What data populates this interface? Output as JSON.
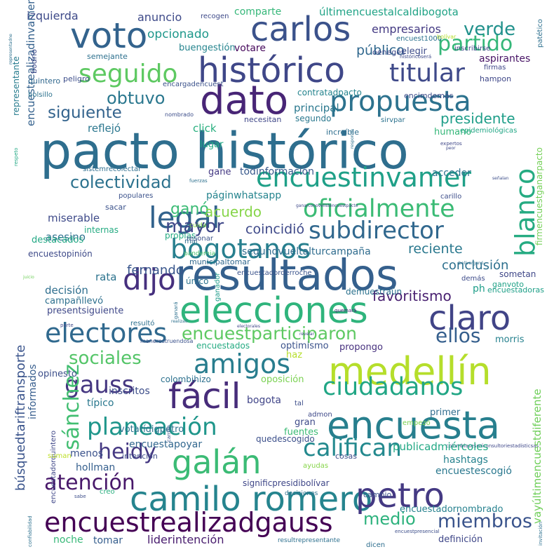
{
  "words": [
    {
      "text": "pacto histórico",
      "color": "#2e6e8e"
    },
    {
      "text": "resultados",
      "color": "#35608d"
    },
    {
      "text": "encuesta",
      "color": "#277f8e"
    },
    {
      "text": "medellín",
      "color": "#b5de2b"
    },
    {
      "text": "elecciones",
      "color": "#2fb47c"
    },
    {
      "text": "voto",
      "color": "#33638d"
    },
    {
      "text": "carlos",
      "color": "#3b528b"
    },
    {
      "text": "dato",
      "color": "#482576"
    },
    {
      "text": "histórico",
      "color": "#3f4788"
    },
    {
      "text": "propuesta",
      "color": "#2c728e"
    },
    {
      "text": "seguido",
      "color": "#5ec962"
    },
    {
      "text": "titular",
      "color": "#3e4989"
    },
    {
      "text": "camilo romero",
      "color": "#25848e"
    },
    {
      "text": "petro",
      "color": "#443983"
    },
    {
      "text": "claro",
      "color": "#414487"
    },
    {
      "text": "fácil",
      "color": "#472c7a"
    },
    {
      "text": "galán",
      "color": "#3bbb75"
    },
    {
      "text": "encuestrealizadgauss",
      "color": "#440154"
    },
    {
      "text": "amigos",
      "color": "#287d8e"
    },
    {
      "text": "electores",
      "color": "#30698e"
    },
    {
      "text": "ciudadanos",
      "color": "#21a685"
    },
    {
      "text": "califican",
      "color": "#23898e"
    },
    {
      "text": "planeación",
      "color": "#1f968b"
    },
    {
      "text": "encuestinvamer",
      "color": "#1fa088"
    },
    {
      "text": "oficialmente",
      "color": "#3bbb75"
    },
    {
      "text": "legal",
      "color": "#33638d"
    },
    {
      "text": "subdirector",
      "color": "#31688e"
    },
    {
      "text": "blanco",
      "color": "#25ab82"
    },
    {
      "text": "bogotanos",
      "color": "#277f8e"
    },
    {
      "text": "dijo",
      "color": "#46307e"
    },
    {
      "text": "gauss",
      "color": "#453781"
    },
    {
      "text": "heidy",
      "color": "#453882"
    },
    {
      "text": "sánchez",
      "color": "#42be71"
    },
    {
      "text": "atención",
      "color": "#48186a"
    },
    {
      "text": "medio",
      "color": "#2db27d"
    },
    {
      "text": "miembros",
      "color": "#3a548c"
    },
    {
      "text": "colectividad",
      "color": "#2c728e"
    },
    {
      "text": "mayor",
      "color": "#3f4788"
    },
    {
      "text": "partido",
      "color": "#35b779"
    },
    {
      "text": "verde",
      "color": "#21918c"
    },
    {
      "text": "obtuvo",
      "color": "#2a778e"
    },
    {
      "text": "siguiente",
      "color": "#33638d"
    },
    {
      "text": "presidente",
      "color": "#1f9e89"
    },
    {
      "text": "sociales",
      "color": "#54c568"
    },
    {
      "text": "ellos",
      "color": "#355f8d"
    },
    {
      "text": "encuestparticiparon",
      "color": "#5ec962"
    },
    {
      "text": "ganó",
      "color": "#3bbb75"
    },
    {
      "text": "acuerdo",
      "color": "#86d549"
    },
    {
      "text": "fernando",
      "color": "#39568c"
    },
    {
      "text": "coincidió",
      "color": "#3e4989"
    },
    {
      "text": "reciente",
      "color": "#2a788e"
    },
    {
      "text": "conclusión",
      "color": "#2d708e"
    },
    {
      "text": "favoritismo",
      "color": "#481f70"
    },
    {
      "text": "público",
      "color": "#31688e"
    },
    {
      "text": "empresarios",
      "color": "#443a83"
    },
    {
      "text": "opcionado",
      "color": "#1f988b"
    },
    {
      "text": "anuncio",
      "color": "#3e4a89"
    },
    {
      "text": "izquierda",
      "color": "#3e4a89"
    },
    {
      "text": "comparte",
      "color": "#35b779"
    },
    {
      "text": "últimencuestalcaldibogota",
      "color": "#20a386"
    },
    {
      "text": "votare",
      "color": "#46085c"
    },
    {
      "text": "buengestión",
      "color": "#25848e"
    },
    {
      "text": "elegir",
      "color": "#3e4c8a"
    },
    {
      "text": "aspirantes",
      "color": "#471365"
    },
    {
      "text": "colombiasesoríconsultoriestadísticsas",
      "color": "#3f4889"
    },
    {
      "text": "encuestapoyar",
      "color": "#31678e"
    },
    {
      "text": "publicadmiércoles",
      "color": "#22a884"
    },
    {
      "text": "vayúltimencuestdiferente",
      "color": "#6ece58"
    },
    {
      "text": "encuestescogió",
      "color": "#2a788e"
    },
    {
      "text": "hashtags",
      "color": "#26828e"
    },
    {
      "text": "liderintención",
      "color": "#481c6e"
    },
    {
      "text": "tomar",
      "color": "#355e8d"
    },
    {
      "text": "noche",
      "color": "#37b878"
    },
    {
      "text": "hollman",
      "color": "#355f8d"
    },
    {
      "text": "menos",
      "color": "#3b528b"
    },
    {
      "text": "intención",
      "color": "#3d4d8a"
    },
    {
      "text": "encuestadornombrado",
      "color": "#26818e"
    },
    {
      "text": "definición",
      "color": "#3f4788"
    },
    {
      "text": "significpresidibolívar",
      "color": "#3f4788"
    },
    {
      "text": "quedescogido",
      "color": "#3c508b"
    },
    {
      "text": "fuentes",
      "color": "#3bbb75"
    },
    {
      "text": "gran",
      "color": "#3e4a89"
    },
    {
      "text": "bogota",
      "color": "#404588"
    },
    {
      "text": "primer",
      "color": "#2f6c8e"
    },
    {
      "text": "inscritos",
      "color": "#3d4e8a"
    },
    {
      "text": "típico",
      "color": "#2a788e"
    },
    {
      "text": "opinesto",
      "color": "#3c4f8a"
    },
    {
      "text": "colombihizo",
      "color": "#2d718e"
    },
    {
      "text": "oposición",
      "color": "#7ad151"
    },
    {
      "text": "haz",
      "color": "#b5de2b"
    },
    {
      "text": "optimismo",
      "color": "#3b528b"
    },
    {
      "text": "propongo",
      "color": "#46307e"
    },
    {
      "text": "encuestados",
      "color": "#25ab82"
    },
    {
      "text": "morris",
      "color": "#26818e"
    },
    {
      "text": "búsquedtariftransporte",
      "color": "#3a548c"
    },
    {
      "text": "informados",
      "color": "#365d8d"
    },
    {
      "text": "decisión",
      "color": "#2e6e8e"
    },
    {
      "text": "campañllevó",
      "color": "#2d708e"
    },
    {
      "text": "presentsiguiente",
      "color": "#3f4889"
    },
    {
      "text": "rata",
      "color": "#2c738e"
    },
    {
      "text": "asesino",
      "color": "#2d718e"
    },
    {
      "text": "destacados",
      "color": "#22a884"
    },
    {
      "text": "encuestopinión",
      "color": "#3e4a89"
    },
    {
      "text": "miserable",
      "color": "#3e4a89"
    },
    {
      "text": "internas",
      "color": "#25ab82"
    },
    {
      "text": "gane",
      "color": "#443983"
    },
    {
      "text": "todinformación",
      "color": "#38598c"
    },
    {
      "text": "acceder",
      "color": "#2c728e"
    },
    {
      "text": "páginwhatsapp",
      "color": "#25848e"
    },
    {
      "text": "segundvueltalturcampaña",
      "color": "#2f6c8e"
    },
    {
      "text": "municipaltomar",
      "color": "#31688e"
    },
    {
      "text": "demuestraún",
      "color": "#2c728e"
    },
    {
      "text": "ph",
      "color": "#1f9e89"
    },
    {
      "text": "ganvoto",
      "color": "#1fa287"
    },
    {
      "text": "encuestadorderroche",
      "color": "#3a538b"
    },
    {
      "text": "reflejó",
      "color": "#2a768e"
    },
    {
      "text": "click",
      "color": "#29af7f"
    },
    {
      "text": "humano",
      "color": "#35b779"
    },
    {
      "text": "lugar",
      "color": "#22a884"
    },
    {
      "text": "principal",
      "color": "#2a788e"
    },
    {
      "text": "segundo",
      "color": "#2a788e"
    },
    {
      "text": "necesitan",
      "color": "#3f4788"
    },
    {
      "text": "encimdemás",
      "color": "#3e4c8a"
    },
    {
      "text": "contratadpacto",
      "color": "#25848e"
    },
    {
      "text": "encuestrealizadinvamer",
      "color": "#34618d"
    },
    {
      "text": "representante",
      "color": "#287c8e"
    },
    {
      "text": "epidemiológicas",
      "color": "#21a685"
    },
    {
      "text": "firmencuestganarpacto",
      "color": "#73d056"
    },
    {
      "text": "hampon",
      "color": "#3f4788"
    },
    {
      "text": "patético",
      "color": "#2d708e"
    },
    {
      "text": "firmas",
      "color": "#3f4788"
    },
    {
      "text": "único",
      "color": "#2c738e"
    },
    {
      "text": "pandemia",
      "color": "#4ac16d"
    },
    {
      "text": "mal",
      "color": "#2d708e"
    },
    {
      "text": "cuida",
      "color": "#86d549"
    },
    {
      "text": "propias",
      "color": "#25ab82"
    },
    {
      "text": "sacar",
      "color": "#3b528b"
    },
    {
      "text": "populares",
      "color": "#3b528b"
    },
    {
      "text": "sistemrecolectar",
      "color": "#2e6e8e"
    },
    {
      "text": "fuerzas",
      "color": "#2d708e"
    },
    {
      "text": "carillo",
      "color": "#3d4e8a"
    },
    {
      "text": "sometan",
      "color": "#3f4788"
    },
    {
      "text": "encuestadoras",
      "color": "#1fa088"
    },
    {
      "text": "demás",
      "color": "#3e4c8a"
    },
    {
      "text": "resultó",
      "color": "#2d708e"
    },
    {
      "text": "ganador",
      "color": "#1e9b8a"
    },
    {
      "text": "manerestruendosa",
      "color": "#3b528b"
    },
    {
      "text": "quemará",
      "color": "#482475"
    },
    {
      "text": "admon",
      "color": "#3e4989"
    },
    {
      "text": "tal",
      "color": "#3d4e8a"
    },
    {
      "text": "empezó",
      "color": "#7ad151"
    },
    {
      "text": "ayudas",
      "color": "#86d549"
    },
    {
      "text": "cosas",
      "color": "#3d4e8a"
    },
    {
      "text": "cambio",
      "color": "#3b528b"
    },
    {
      "text": "dicen",
      "color": "#2e6e8e"
    },
    {
      "text": "decisiones",
      "color": "#2c728e"
    },
    {
      "text": "resultrepresentante",
      "color": "#2d708e"
    },
    {
      "text": "encuestpresencial",
      "color": "#3d4e8a"
    },
    {
      "text": "invitación",
      "color": "#2d708e"
    },
    {
      "text": "creo",
      "color": "#29af7f"
    },
    {
      "text": "sabe",
      "color": "#3d4e8a"
    },
    {
      "text": "encuestadorquintero",
      "color": "#3f4788"
    },
    {
      "text": "votarídigpetro",
      "color": "#2c728e"
    },
    {
      "text": "suman",
      "color": "#bddf26"
    },
    {
      "text": "revelar",
      "color": "#3e4989"
    },
    {
      "text": "electorales",
      "color": "#3f4788"
    },
    {
      "text": "ganará",
      "color": "#2d708e"
    },
    {
      "text": "realizaó",
      "color": "#2d708e"
    },
    {
      "text": "parte",
      "color": "#3e4989"
    },
    {
      "text": "carrillo",
      "color": "#3b528b"
    },
    {
      "text": "juicio",
      "color": "#6ece58"
    },
    {
      "text": "bolívarganó",
      "color": "#2d708e"
    },
    {
      "text": "señalan",
      "color": "#3d4e8a"
    },
    {
      "text": "ganarconovelistencuestpacto",
      "color": "#3e4989"
    },
    {
      "text": "expertos",
      "color": "#3f4788"
    },
    {
      "text": "peor",
      "color": "#3e4989"
    },
    {
      "text": "responde",
      "color": "#2d708e"
    },
    {
      "text": "increíble",
      "color": "#2e6e8e"
    },
    {
      "text": "sirvpar",
      "color": "#2c728e"
    },
    {
      "text": "respeto",
      "color": "#22a884"
    },
    {
      "text": "nombrado",
      "color": "#3d4e8a"
    },
    {
      "text": "bolsillo",
      "color": "#2c728e"
    },
    {
      "text": "encargadencuest",
      "color": "#3b528b"
    },
    {
      "text": "quintero",
      "color": "#31688e"
    },
    {
      "text": "peligro",
      "color": "#3d4e8a"
    },
    {
      "text": "bodrio",
      "color": "#3e4989"
    },
    {
      "text": "semejante",
      "color": "#2d708e"
    },
    {
      "text": "recogen",
      "color": "#3e4a89"
    },
    {
      "text": "encuest1000",
      "color": "#2c728e"
    },
    {
      "text": "bolívar",
      "color": "#b5de2b"
    },
    {
      "text": "oenegés",
      "color": "#3e4989"
    },
    {
      "text": "históricoserá",
      "color": "#3e4989"
    },
    {
      "text": "inscribirse",
      "color": "#3f4788"
    },
    {
      "text": "confiabilidad",
      "color": "#2d708e"
    },
    {
      "text": "resonar",
      "color": "#3b528b"
    },
    {
      "text": "representadne",
      "color": "#2d708e"
    }
  ]
}
